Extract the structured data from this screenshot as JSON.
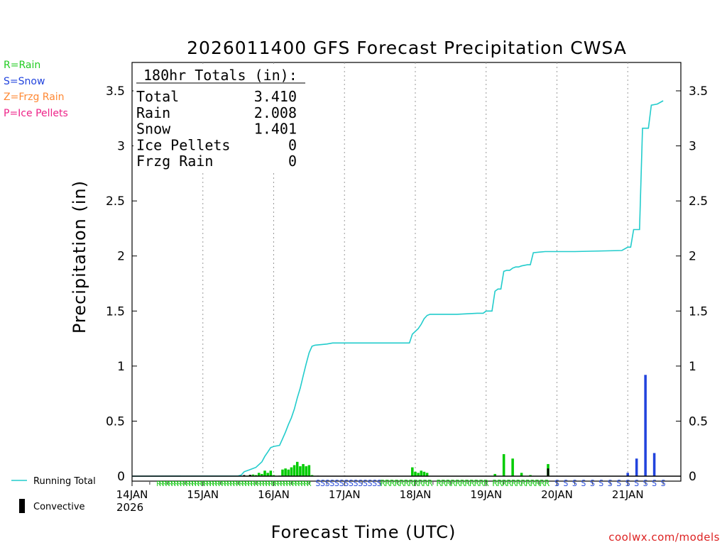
{
  "chart_data": {
    "type": "bar",
    "title": "2026011400 GFS Forecast Precipitation CWSA",
    "ylabel": "Precipitation (in)",
    "xlabel": "Forecast Time (UTC)",
    "ylim": [
      0,
      3.75
    ],
    "xlim_hours": [
      0,
      186
    ],
    "y_ticks": [
      "0",
      "0.5",
      "1",
      "1.5",
      "2",
      "2.5",
      "3",
      "3.5"
    ],
    "y_tick_values": [
      0,
      0.5,
      1,
      1.5,
      2,
      2.5,
      3,
      3.5
    ],
    "x_ticks": [
      {
        "label": "14JAN",
        "hour": 0
      },
      {
        "label": "15JAN",
        "hour": 24
      },
      {
        "label": "16JAN",
        "hour": 48
      },
      {
        "label": "17JAN",
        "hour": 72
      },
      {
        "label": "18JAN",
        "hour": 96
      },
      {
        "label": "19JAN",
        "hour": 120
      },
      {
        "label": "20JAN",
        "hour": 144
      },
      {
        "label": "21JAN",
        "hour": 168
      }
    ],
    "year_label": "2026",
    "type_legend": [
      {
        "label": "R=Rain",
        "color": "#22cc22"
      },
      {
        "label": "S=Snow",
        "color": "#2244dd"
      },
      {
        "label": "Z=Frzg Rain",
        "color": "#ff8833"
      },
      {
        "label": "P=Ice Pellets",
        "color": "#ee2288"
      }
    ],
    "totals_box": {
      "header": "180hr Totals (in):",
      "rows": [
        {
          "label": "Total",
          "value": "3.410"
        },
        {
          "label": "Rain",
          "value": "2.008"
        },
        {
          "label": "Snow",
          "value": "1.401"
        },
        {
          "label": "Ice Pellets",
          "value": "0"
        },
        {
          "label": "Frzg Rain",
          "value": "0"
        }
      ]
    },
    "series_legend": {
      "running_total": "Running Total",
      "convective": "Convective"
    },
    "credit": "coolwx.com/models",
    "colors": {
      "rain": "#00cc00",
      "snow": "#2244dd",
      "total_line": "#22cccc",
      "convective": "#000000",
      "credit": "#dd2222"
    },
    "bars": [
      {
        "hour": 38,
        "value": 0.003,
        "type": "rain"
      },
      {
        "hour": 39,
        "value": 0.005,
        "type": "rain"
      },
      {
        "hour": 40,
        "value": 0.01,
        "type": "rain"
      },
      {
        "hour": 41,
        "value": 0.015,
        "type": "rain"
      },
      {
        "hour": 42,
        "value": 0.01,
        "type": "rain"
      },
      {
        "hour": 43,
        "value": 0.03,
        "type": "rain"
      },
      {
        "hour": 44,
        "value": 0.02,
        "type": "rain"
      },
      {
        "hour": 45,
        "value": 0.05,
        "type": "rain"
      },
      {
        "hour": 46,
        "value": 0.03,
        "type": "rain"
      },
      {
        "hour": 47,
        "value": 0.05,
        "type": "rain"
      },
      {
        "hour": 48,
        "value": 0.01,
        "type": "rain"
      },
      {
        "hour": 50,
        "value": 0.005,
        "type": "rain"
      },
      {
        "hour": 51,
        "value": 0.06,
        "type": "rain"
      },
      {
        "hour": 52,
        "value": 0.07,
        "type": "rain"
      },
      {
        "hour": 53,
        "value": 0.06,
        "type": "rain"
      },
      {
        "hour": 54,
        "value": 0.08,
        "type": "rain"
      },
      {
        "hour": 55,
        "value": 0.1,
        "type": "rain"
      },
      {
        "hour": 56,
        "value": 0.13,
        "type": "rain"
      },
      {
        "hour": 57,
        "value": 0.09,
        "type": "rain"
      },
      {
        "hour": 58,
        "value": 0.11,
        "type": "rain"
      },
      {
        "hour": 59,
        "value": 0.09,
        "type": "rain"
      },
      {
        "hour": 60,
        "value": 0.1,
        "type": "rain"
      },
      {
        "hour": 61,
        "value": 0.01,
        "type": "rain"
      },
      {
        "hour": 95,
        "value": 0.08,
        "type": "rain"
      },
      {
        "hour": 96,
        "value": 0.04,
        "type": "rain"
      },
      {
        "hour": 97,
        "value": 0.03,
        "type": "rain"
      },
      {
        "hour": 98,
        "value": 0.05,
        "type": "rain"
      },
      {
        "hour": 99,
        "value": 0.04,
        "type": "rain"
      },
      {
        "hour": 100,
        "value": 0.03,
        "type": "rain"
      },
      {
        "hour": 123,
        "value": 0.02,
        "type": "rain"
      },
      {
        "hour": 126,
        "value": 0.2,
        "type": "rain"
      },
      {
        "hour": 129,
        "value": 0.16,
        "type": "rain"
      },
      {
        "hour": 132,
        "value": 0.03,
        "type": "rain"
      },
      {
        "hour": 135,
        "value": 0.01,
        "type": "rain"
      },
      {
        "hour": 141,
        "value": 0.11,
        "type": "rain"
      },
      {
        "hour": 168,
        "value": 0.03,
        "type": "snow"
      },
      {
        "hour": 171,
        "value": 0.16,
        "type": "snow"
      },
      {
        "hour": 174,
        "value": 0.92,
        "type": "snow"
      },
      {
        "hour": 177,
        "value": 0.21,
        "type": "snow"
      }
    ],
    "convective_bars": [
      {
        "hour": 38,
        "value": 0.01
      },
      {
        "hour": 40,
        "value": 0.012
      },
      {
        "hour": 47,
        "value": 0.005
      },
      {
        "hour": 63,
        "value": 0.004
      },
      {
        "hour": 72,
        "value": 0.004
      },
      {
        "hour": 100,
        "value": 0.003
      },
      {
        "hour": 141,
        "value": 0.07
      }
    ],
    "running_total": [
      [
        0,
        0
      ],
      [
        36,
        0.002
      ],
      [
        37,
        0.01
      ],
      [
        38,
        0.04
      ],
      [
        40,
        0.06
      ],
      [
        42,
        0.08
      ],
      [
        44,
        0.13
      ],
      [
        45,
        0.18
      ],
      [
        46,
        0.22
      ],
      [
        47,
        0.26
      ],
      [
        48,
        0.27
      ],
      [
        50,
        0.28
      ],
      [
        51,
        0.34
      ],
      [
        52,
        0.4
      ],
      [
        53,
        0.47
      ],
      [
        54,
        0.53
      ],
      [
        55,
        0.61
      ],
      [
        56,
        0.71
      ],
      [
        57,
        0.8
      ],
      [
        58,
        0.91
      ],
      [
        59,
        1.02
      ],
      [
        60,
        1.12
      ],
      [
        61,
        1.18
      ],
      [
        62,
        1.19
      ],
      [
        66,
        1.2
      ],
      [
        68,
        1.21
      ],
      [
        72,
        1.21
      ],
      [
        94,
        1.21
      ],
      [
        95,
        1.29
      ],
      [
        97,
        1.34
      ],
      [
        98,
        1.38
      ],
      [
        99,
        1.43
      ],
      [
        100,
        1.46
      ],
      [
        101,
        1.47
      ],
      [
        110,
        1.47
      ],
      [
        117,
        1.48
      ],
      [
        119,
        1.48
      ],
      [
        120,
        1.5
      ],
      [
        122,
        1.5
      ],
      [
        123,
        1.68
      ],
      [
        124,
        1.7
      ],
      [
        125,
        1.7
      ],
      [
        126,
        1.86
      ],
      [
        127,
        1.87
      ],
      [
        128,
        1.87
      ],
      [
        129,
        1.89
      ],
      [
        130,
        1.9
      ],
      [
        131,
        1.9
      ],
      [
        132,
        1.91
      ],
      [
        134,
        1.92
      ],
      [
        135,
        1.92
      ],
      [
        136,
        2.03
      ],
      [
        140,
        2.04
      ],
      [
        150,
        2.04
      ],
      [
        166,
        2.05
      ],
      [
        168,
        2.08
      ],
      [
        169,
        2.08
      ],
      [
        170,
        2.24
      ],
      [
        172,
        2.24
      ],
      [
        173,
        3.16
      ],
      [
        175,
        3.16
      ],
      [
        176,
        3.37
      ],
      [
        178,
        3.38
      ],
      [
        180,
        3.41
      ]
    ],
    "ptype_strip": [
      {
        "from": 9,
        "to": 60,
        "char": "R",
        "type": "rain"
      },
      {
        "from": 63,
        "to": 84,
        "char": "S",
        "type": "snow"
      },
      {
        "from": 85,
        "to": 101,
        "char": "R",
        "type": "rain"
      },
      {
        "from": 104,
        "to": 120,
        "char": "R",
        "type": "rain"
      },
      {
        "from": 123,
        "to": 141,
        "char": "R",
        "type": "rain"
      },
      {
        "from": 144,
        "to": 180,
        "char": "S",
        "type": "snow"
      }
    ]
  }
}
